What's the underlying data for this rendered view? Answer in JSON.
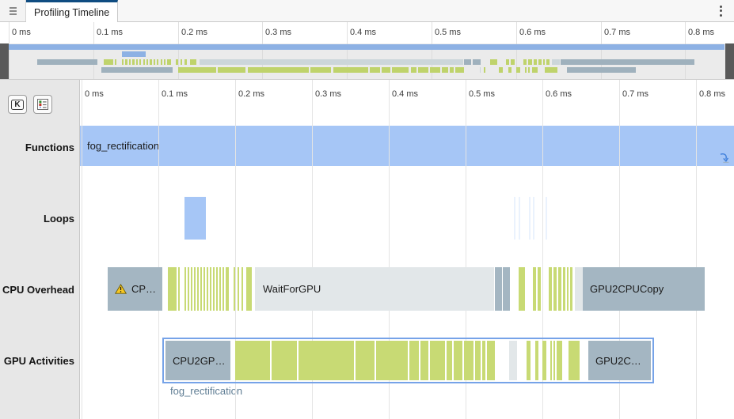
{
  "window": {
    "tab_title": "Profiling Timeline"
  },
  "toolbar": {
    "kernel_button_label": "K"
  },
  "ruler": {
    "ticks": [
      "0 ms",
      "0.1 ms",
      "0.2 ms",
      "0.3 ms",
      "0.4 ms",
      "0.5 ms",
      "0.6 ms",
      "0.7 ms",
      "0.8 ms"
    ]
  },
  "rows": {
    "labels": [
      "Functions",
      "Loops",
      "CPU Overhead",
      "GPU Activities"
    ]
  },
  "colors": {
    "tab_accent": "#0f4c81",
    "bar_blue": "#a6c6f6",
    "bar_gray": "#a4b6c2",
    "bar_light_gray": "#e2e7e9",
    "bar_green": "#c8da74",
    "gpu_container_border": "#76a3e8",
    "caption_text": "#5f7d94"
  },
  "timeline_data": {
    "unit": "ms",
    "range": [
      0,
      0.85
    ],
    "functions": [
      {
        "start": 0,
        "end": 0.85,
        "label": "fog_rectification"
      }
    ],
    "loops": {
      "bars": [
        {
          "start": 0.134,
          "end": 0.162
        }
      ],
      "faint": [
        [
          0.5629,
          0.5649
        ],
        [
          0.5691,
          0.5711
        ],
        [
          0.5825,
          0.5845
        ],
        [
          0.5876,
          0.5897
        ],
        [
          0.6041,
          0.6062
        ]
      ]
    },
    "cpu_overhead": {
      "blocks": [
        {
          "start": 0.034,
          "end": 0.105,
          "kind": "gray",
          "label": "CP…",
          "warning": true
        },
        {
          "start": 0.2258,
          "end": 0.5371,
          "kind": "light",
          "label": "WaitForGPU"
        },
        {
          "start": 0.5381,
          "end": 0.5464,
          "kind": "gray"
        },
        {
          "start": 0.5485,
          "end": 0.5577,
          "kind": "gray"
        },
        {
          "start": 0.6423,
          "end": 0.6515,
          "kind": "light"
        },
        {
          "start": 0.6526,
          "end": 0.8113,
          "kind": "gray",
          "label": "GPU2CPUCopy"
        }
      ],
      "green": [
        [
          0.1124,
          0.1237
        ],
        [
          0.1258,
          0.1278
        ],
        [
          0.134,
          0.1361
        ],
        [
          0.1381,
          0.1402
        ],
        [
          0.1423,
          0.1443
        ],
        [
          0.1464,
          0.1485
        ],
        [
          0.1505,
          0.1526
        ],
        [
          0.1546,
          0.1567
        ],
        [
          0.1588,
          0.1608
        ],
        [
          0.1629,
          0.1649
        ],
        [
          0.167,
          0.1691
        ],
        [
          0.1711,
          0.1732
        ],
        [
          0.1753,
          0.1773
        ],
        [
          0.1794,
          0.1814
        ],
        [
          0.1835,
          0.1856
        ],
        [
          0.1876,
          0.1918
        ],
        [
          0.1979,
          0.2
        ],
        [
          0.2031,
          0.2052
        ],
        [
          0.2082,
          0.2103
        ],
        [
          0.2144,
          0.2216
        ],
        [
          0.5691,
          0.5773
        ],
        [
          0.5876,
          0.5918
        ],
        [
          0.5938,
          0.5979
        ],
        [
          0.6082,
          0.6124
        ],
        [
          0.6144,
          0.6186
        ],
        [
          0.6206,
          0.6247
        ],
        [
          0.6268,
          0.6299
        ],
        [
          0.632,
          0.634
        ],
        [
          0.6361,
          0.6392
        ]
      ]
    },
    "gpu_activities": {
      "container": {
        "start": 0.1072,
        "end": 0.7433
      },
      "caption": "fog_rectification",
      "blocks": [
        {
          "start": 0.1093,
          "end": 0.1938,
          "kind": "gray",
          "label": "CPU2GP…"
        },
        {
          "start": 0.5567,
          "end": 0.5577,
          "kind": "light"
        },
        {
          "start": 0.6598,
          "end": 0.7412,
          "kind": "gray",
          "label": "GPU2C…"
        }
      ],
      "green": [
        [
          0.2,
          0.2454
        ],
        [
          0.2474,
          0.2804
        ],
        [
          0.2825,
          0.3546
        ],
        [
          0.3567,
          0.3814
        ],
        [
          0.3835,
          0.4247
        ],
        [
          0.4268,
          0.4392
        ],
        [
          0.4412,
          0.4515
        ],
        [
          0.4536,
          0.4732
        ],
        [
          0.4753,
          0.4825
        ],
        [
          0.4845,
          0.4959
        ],
        [
          0.4979,
          0.5103
        ],
        [
          0.5124,
          0.5196
        ],
        [
          0.5216,
          0.5258
        ],
        [
          0.5278,
          0.5381
        ],
        [
          0.5619,
          0.5639
        ],
        [
          0.5794,
          0.5845
        ],
        [
          0.5907,
          0.5948
        ],
        [
          0.6,
          0.6052
        ],
        [
          0.6103,
          0.6124
        ],
        [
          0.6144,
          0.6165
        ],
        [
          0.6186,
          0.6258
        ],
        [
          0.634,
          0.6485
        ]
      ]
    }
  }
}
